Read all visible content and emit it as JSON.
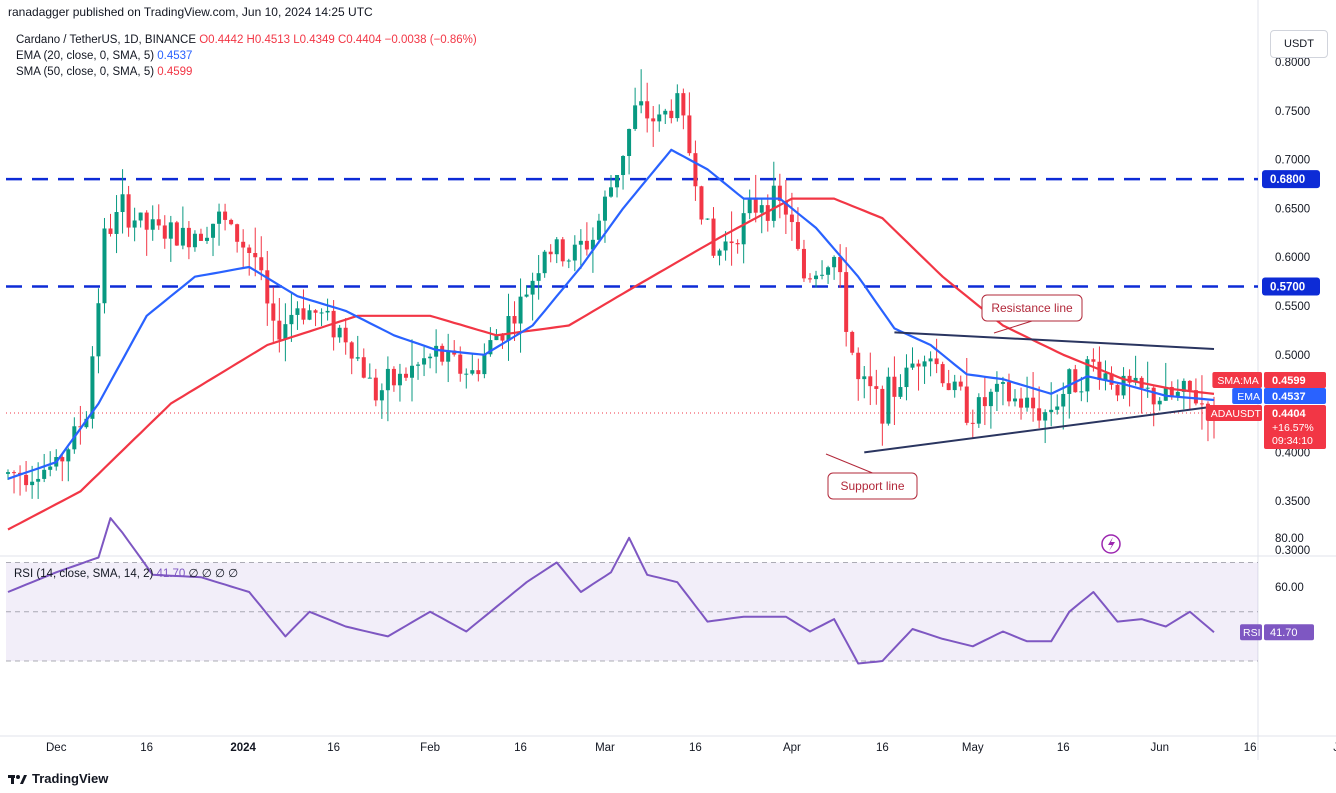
{
  "header": {
    "publisher": "ranadagger published on TradingView.com, Jun 10, 2024 14:25 UTC"
  },
  "legend": {
    "symbol": "Cardano / TetherUS, 1D, BINANCE",
    "ohlc": "O0.4442 H0.4513 L0.4349 C0.4404 −0.0038 (−0.86%)",
    "ema_label": "EMA (20, close, 0, SMA, 5)",
    "ema_value": "0.4537",
    "sma_label": "SMA (50, close, 0, SMA, 5)",
    "sma_value": "0.4599"
  },
  "currency_button": "USDT",
  "rsi_legend": {
    "label": "RSI (14, close, SMA, 14, 2)",
    "value": "41.70",
    "extra": "∅ ∅ ∅ ∅"
  },
  "brand": "TradingView",
  "colors": {
    "up": "#089981",
    "down": "#f23645",
    "ema": "#2962ff",
    "sma": "#f23645",
    "level": "#0d2bd6",
    "rsi": "#7e57c2",
    "trend": "#2a3560",
    "annotation": "#b2283a"
  },
  "chart_data": {
    "type": "candlestick",
    "price_axis": {
      "ylim": [
        0.3,
        0.8
      ],
      "ticks": [
        "0.8000",
        "0.7500",
        "0.7000",
        "0.6500",
        "0.6000",
        "0.5500",
        "0.5000",
        "0.4000",
        "0.3500",
        "0.3000"
      ]
    },
    "x_ticks": [
      "Dec",
      "16",
      "2024",
      "16",
      "Feb",
      "16",
      "Mar",
      "16",
      "Apr",
      "16",
      "May",
      "16",
      "Jun",
      "16",
      "Jul"
    ],
    "start_date": "2023-11-23",
    "end_date": "2024-07-08",
    "horizontal_levels": [
      {
        "price": 0.68,
        "label": "0.6800"
      },
      {
        "price": 0.57,
        "label": "0.5700"
      }
    ],
    "trendlines": [
      {
        "name": "Resistance line",
        "from": {
          "date": "2024-04-18",
          "price": 0.523
        },
        "to": {
          "date": "2024-06-10",
          "price": 0.506
        }
      },
      {
        "name": "Support line",
        "from": {
          "date": "2024-04-13",
          "price": 0.4
        },
        "to": {
          "date": "2024-06-10",
          "price": 0.447
        }
      }
    ],
    "annotations": [
      "Resistance line",
      "Support line"
    ],
    "price_labels": [
      {
        "tag": "SMA:MA",
        "value": "0.4599",
        "price": 0.4599,
        "color": "#f23645"
      },
      {
        "tag": "EMA",
        "value": "0.4537",
        "price": 0.4537,
        "color": "#2962ff"
      },
      {
        "tag": "ADAUSDT",
        "value": "0.4404",
        "price": 0.4404,
        "color": "#f23645",
        "extra": [
          "+16.57%",
          "09:34:10"
        ]
      }
    ],
    "close_anchors": [
      [
        "2023-11-23",
        0.378
      ],
      [
        "2023-12-01",
        0.385
      ],
      [
        "2023-12-06",
        0.44
      ],
      [
        "2023-12-09",
        0.62
      ],
      [
        "2023-12-12",
        0.65
      ],
      [
        "2023-12-16",
        0.63
      ],
      [
        "2023-12-22",
        0.62
      ],
      [
        "2023-12-28",
        0.64
      ],
      [
        "2024-01-03",
        0.6
      ],
      [
        "2024-01-06",
        0.52
      ],
      [
        "2024-01-10",
        0.55
      ],
      [
        "2024-01-14",
        0.54
      ],
      [
        "2024-01-18",
        0.52
      ],
      [
        "2024-01-23",
        0.46
      ],
      [
        "2024-01-28",
        0.48
      ],
      [
        "2024-02-02",
        0.5
      ],
      [
        "2024-02-08",
        0.48
      ],
      [
        "2024-02-12",
        0.52
      ],
      [
        "2024-02-16",
        0.55
      ],
      [
        "2024-02-20",
        0.61
      ],
      [
        "2024-02-24",
        0.6
      ],
      [
        "2024-02-28",
        0.62
      ],
      [
        "2024-03-03",
        0.69
      ],
      [
        "2024-03-06",
        0.75
      ],
      [
        "2024-03-10",
        0.74
      ],
      [
        "2024-03-13",
        0.76
      ],
      [
        "2024-03-15",
        0.71
      ],
      [
        "2024-03-19",
        0.6
      ],
      [
        "2024-03-23",
        0.63
      ],
      [
        "2024-03-27",
        0.66
      ],
      [
        "2024-03-31",
        0.65
      ],
      [
        "2024-04-03",
        0.58
      ],
      [
        "2024-04-08",
        0.6
      ],
      [
        "2024-04-12",
        0.47
      ],
      [
        "2024-04-16",
        0.45
      ],
      [
        "2024-04-20",
        0.48
      ],
      [
        "2024-04-23",
        0.51
      ],
      [
        "2024-04-27",
        0.47
      ],
      [
        "2024-05-01",
        0.44
      ],
      [
        "2024-05-05",
        0.46
      ],
      [
        "2024-05-09",
        0.45
      ],
      [
        "2024-05-13",
        0.44
      ],
      [
        "2024-05-17",
        0.47
      ],
      [
        "2024-05-21",
        0.49
      ],
      [
        "2024-05-25",
        0.47
      ],
      [
        "2024-05-29",
        0.46
      ],
      [
        "2024-06-02",
        0.455
      ],
      [
        "2024-06-06",
        0.46
      ],
      [
        "2024-06-10",
        0.4404
      ]
    ],
    "ema_20_anchors": [
      [
        "2023-11-23",
        0.373
      ],
      [
        "2023-12-01",
        0.39
      ],
      [
        "2023-12-08",
        0.45
      ],
      [
        "2023-12-16",
        0.54
      ],
      [
        "2023-12-24",
        0.58
      ],
      [
        "2024-01-02",
        0.59
      ],
      [
        "2024-01-10",
        0.56
      ],
      [
        "2024-01-18",
        0.545
      ],
      [
        "2024-01-26",
        0.52
      ],
      [
        "2024-02-02",
        0.505
      ],
      [
        "2024-02-10",
        0.5
      ],
      [
        "2024-02-18",
        0.53
      ],
      [
        "2024-02-26",
        0.59
      ],
      [
        "2024-03-04",
        0.65
      ],
      [
        "2024-03-12",
        0.71
      ],
      [
        "2024-03-18",
        0.69
      ],
      [
        "2024-03-24",
        0.66
      ],
      [
        "2024-03-30",
        0.66
      ],
      [
        "2024-04-05",
        0.63
      ],
      [
        "2024-04-12",
        0.58
      ],
      [
        "2024-04-18",
        0.527
      ],
      [
        "2024-04-24",
        0.51
      ],
      [
        "2024-04-30",
        0.48
      ],
      [
        "2024-05-06",
        0.475
      ],
      [
        "2024-05-14",
        0.46
      ],
      [
        "2024-05-20",
        0.478
      ],
      [
        "2024-05-26",
        0.47
      ],
      [
        "2024-06-02",
        0.458
      ],
      [
        "2024-06-10",
        0.4537
      ]
    ],
    "sma_50_anchors": [
      [
        "2023-11-23",
        0.321
      ],
      [
        "2023-12-05",
        0.36
      ],
      [
        "2023-12-20",
        0.45
      ],
      [
        "2024-01-05",
        0.51
      ],
      [
        "2024-01-20",
        0.54
      ],
      [
        "2024-02-01",
        0.54
      ],
      [
        "2024-02-12",
        0.52
      ],
      [
        "2024-02-24",
        0.53
      ],
      [
        "2024-03-06",
        0.57
      ],
      [
        "2024-03-20",
        0.62
      ],
      [
        "2024-04-01",
        0.66
      ],
      [
        "2024-04-08",
        0.66
      ],
      [
        "2024-04-16",
        0.64
      ],
      [
        "2024-04-26",
        0.58
      ],
      [
        "2024-05-06",
        0.53
      ],
      [
        "2024-05-16",
        0.5
      ],
      [
        "2024-05-26",
        0.475
      ],
      [
        "2024-06-03",
        0.465
      ],
      [
        "2024-06-10",
        0.4599
      ]
    ],
    "rsi": {
      "name": "RSI (14, close, SMA, 14, 2)",
      "ylim": [
        0,
        100
      ],
      "ticks": [
        "80.00",
        "60.00"
      ],
      "band": [
        30,
        70
      ],
      "midline": 50,
      "last": 41.7,
      "anchors": [
        [
          "2023-11-23",
          58
        ],
        [
          "2023-12-01",
          66
        ],
        [
          "2023-12-08",
          72
        ],
        [
          "2023-12-10",
          88
        ],
        [
          "2023-12-12",
          82
        ],
        [
          "2023-12-17",
          65
        ],
        [
          "2023-12-25",
          64
        ],
        [
          "2024-01-02",
          58
        ],
        [
          "2024-01-08",
          40
        ],
        [
          "2024-01-12",
          50
        ],
        [
          "2024-01-18",
          44
        ],
        [
          "2024-01-25",
          40
        ],
        [
          "2024-02-01",
          50
        ],
        [
          "2024-02-07",
          42
        ],
        [
          "2024-02-12",
          52
        ],
        [
          "2024-02-17",
          62
        ],
        [
          "2024-02-22",
          70
        ],
        [
          "2024-02-26",
          58
        ],
        [
          "2024-03-02",
          66
        ],
        [
          "2024-03-05",
          80
        ],
        [
          "2024-03-08",
          65
        ],
        [
          "2024-03-13",
          62
        ],
        [
          "2024-03-18",
          46
        ],
        [
          "2024-03-24",
          48
        ],
        [
          "2024-03-31",
          48
        ],
        [
          "2024-04-04",
          42
        ],
        [
          "2024-04-08",
          47
        ],
        [
          "2024-04-12",
          29
        ],
        [
          "2024-04-16",
          30
        ],
        [
          "2024-04-21",
          43
        ],
        [
          "2024-04-26",
          39
        ],
        [
          "2024-05-01",
          36
        ],
        [
          "2024-05-06",
          42
        ],
        [
          "2024-05-10",
          38
        ],
        [
          "2024-05-14",
          38
        ],
        [
          "2024-05-17",
          50
        ],
        [
          "2024-05-21",
          58
        ],
        [
          "2024-05-25",
          46
        ],
        [
          "2024-05-29",
          47
        ],
        [
          "2024-06-02",
          44
        ],
        [
          "2024-06-06",
          50
        ],
        [
          "2024-06-10",
          41.7
        ]
      ]
    }
  }
}
